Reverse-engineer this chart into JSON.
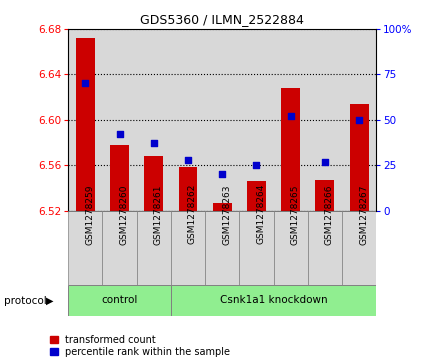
{
  "title": "GDS5360 / ILMN_2522884",
  "samples": [
    "GSM1278259",
    "GSM1278260",
    "GSM1278261",
    "GSM1278262",
    "GSM1278263",
    "GSM1278264",
    "GSM1278265",
    "GSM1278266",
    "GSM1278267"
  ],
  "transformed_count": [
    6.672,
    6.578,
    6.568,
    6.558,
    6.527,
    6.546,
    6.628,
    6.547,
    6.614
  ],
  "percentile_rank": [
    70,
    42,
    37,
    28,
    20,
    25,
    52,
    27,
    50
  ],
  "ylim_left": [
    6.52,
    6.68
  ],
  "ylim_right": [
    0,
    100
  ],
  "yticks_left": [
    6.52,
    6.56,
    6.6,
    6.64,
    6.68
  ],
  "yticks_right": [
    0,
    25,
    50,
    75,
    100
  ],
  "control_indices": [
    0,
    1,
    2
  ],
  "knockdown_indices": [
    3,
    4,
    5,
    6,
    7,
    8
  ],
  "control_label": "control",
  "knockdown_label": "Csnk1a1 knockdown",
  "protocol_label": "protocol",
  "bar_color": "#cc0000",
  "dot_color": "#0000cc",
  "bar_bottom": 6.52,
  "col_bg_color": "#d8d8d8",
  "group_color": "#90ee90",
  "legend_bar_label": "transformed count",
  "legend_dot_label": "percentile rank within the sample",
  "fig_width": 4.4,
  "fig_height": 3.63,
  "dpi": 100
}
